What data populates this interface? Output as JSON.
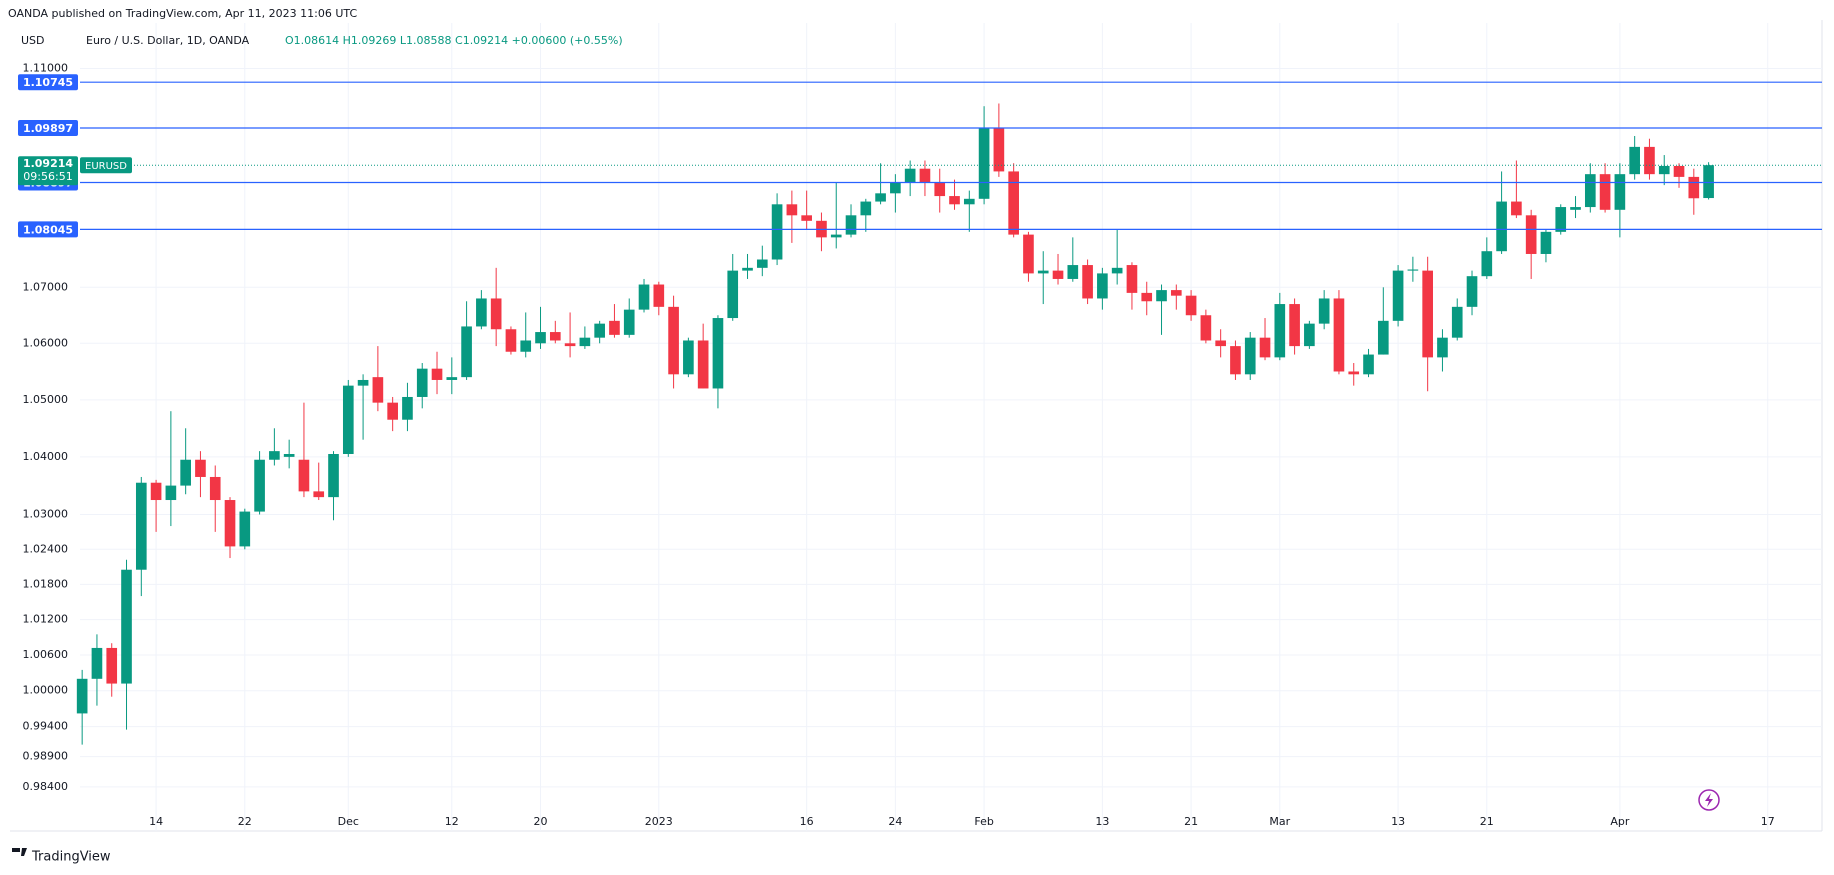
{
  "chart_data": {
    "type": "candlestick",
    "header": "OANDA published on TradingView.com, Apr 11, 2023 11:06 UTC",
    "currency": "USD",
    "legend_title": "Euro / U.S. Dollar, 1D, OANDA",
    "legend_values": "O1.08614 H1.09269 L1.08588 C1.09214 +0.00600 (+0.55%)",
    "footer": "TradingView",
    "log_scale": true,
    "grid": true,
    "up_color": "#089981",
    "down_color": "#f23645",
    "line_color": "#2962ff",
    "open": [
      0.9962,
      1.002,
      1.0072,
      1.0012,
      1.0205,
      1.0355,
      1.0325,
      1.035,
      1.0395,
      1.0365,
      1.0325,
      1.0245,
      1.0305,
      1.0395,
      1.04,
      1.0395,
      1.034,
      1.033,
      1.0405,
      1.0525,
      1.054,
      1.0495,
      1.0465,
      1.0505,
      1.0555,
      1.0535,
      1.054,
      1.063,
      1.068,
      1.0625,
      1.0585,
      1.06,
      1.062,
      1.06,
      1.0595,
      1.061,
      1.064,
      1.0615,
      1.066,
      1.0705,
      1.0665,
      1.0545,
      1.0605,
      1.052,
      1.0645,
      1.073,
      1.0735,
      1.075,
      1.085,
      1.083,
      1.082,
      1.079,
      1.0795,
      1.083,
      1.0855,
      1.087,
      1.089,
      1.0915,
      1.089,
      1.0865,
      1.085,
      1.086,
      1.099,
      1.091,
      1.0795,
      1.0725,
      1.073,
      1.0715,
      1.074,
      1.068,
      1.0725,
      1.074,
      1.069,
      1.0675,
      1.0695,
      1.0685,
      1.065,
      1.0605,
      1.0595,
      1.0545,
      1.061,
      1.0575,
      1.067,
      1.0595,
      1.0635,
      1.068,
      1.055,
      1.0545,
      1.058,
      1.064,
      1.073,
      1.073,
      1.0575,
      1.061,
      1.0665,
      1.072,
      1.0765,
      1.0855,
      1.083,
      1.076,
      1.08,
      1.084,
      1.0845,
      1.0905,
      1.084,
      1.0905,
      1.0955,
      1.0905,
      1.092,
      1.09,
      1.08614
    ],
    "high": [
      1.0035,
      1.0095,
      1.008,
      1.0222,
      1.0365,
      1.036,
      1.048,
      1.045,
      1.041,
      1.0385,
      1.033,
      1.031,
      1.041,
      1.045,
      1.043,
      1.0495,
      1.039,
      1.041,
      1.0535,
      1.0545,
      1.0595,
      1.0505,
      1.053,
      1.0565,
      1.0585,
      1.0575,
      1.0675,
      1.0695,
      1.0735,
      1.063,
      1.0655,
      1.0665,
      1.064,
      1.0655,
      1.063,
      1.064,
      1.067,
      1.068,
      1.0715,
      1.071,
      1.0685,
      1.061,
      1.0635,
      1.065,
      1.076,
      1.076,
      1.0775,
      1.087,
      1.0875,
      1.0875,
      1.0835,
      1.089,
      1.085,
      1.086,
      1.0925,
      1.0905,
      1.093,
      1.093,
      1.0915,
      1.0895,
      1.0875,
      1.103,
      1.1035,
      1.0925,
      1.08,
      1.0765,
      1.076,
      1.079,
      1.075,
      1.0735,
      1.0805,
      1.0745,
      1.071,
      1.0705,
      1.0705,
      1.0695,
      1.066,
      1.0625,
      1.0605,
      1.062,
      1.0645,
      1.069,
      1.068,
      1.064,
      1.0695,
      1.0695,
      1.0565,
      1.059,
      1.07,
      1.074,
      1.0755,
      1.0755,
      1.0625,
      1.068,
      1.073,
      1.079,
      1.091,
      1.093,
      1.084,
      1.0805,
      1.085,
      1.0865,
      1.0925,
      1.0925,
      1.0925,
      1.0975,
      1.097,
      1.094,
      1.0925,
      1.0915,
      1.09269
    ],
    "low": [
      0.991,
      0.9975,
      0.999,
      0.9935,
      1.016,
      1.027,
      1.028,
      1.0335,
      1.033,
      1.027,
      1.0225,
      1.024,
      1.03,
      1.0385,
      1.038,
      1.033,
      1.0325,
      1.029,
      1.04,
      1.043,
      1.048,
      1.0445,
      1.0445,
      1.0485,
      1.051,
      1.051,
      1.0535,
      1.0625,
      1.0595,
      1.058,
      1.0575,
      1.059,
      1.06,
      1.0575,
      1.059,
      1.06,
      1.061,
      1.061,
      1.0655,
      1.065,
      1.052,
      1.054,
      1.052,
      1.0485,
      1.064,
      1.0715,
      1.072,
      1.074,
      1.078,
      1.0805,
      1.0765,
      1.077,
      1.079,
      1.08,
      1.085,
      1.0835,
      1.0865,
      1.0865,
      1.0835,
      1.084,
      1.08,
      1.085,
      1.09,
      1.079,
      1.071,
      1.067,
      1.0705,
      1.071,
      1.067,
      1.066,
      1.0705,
      1.066,
      1.065,
      1.0615,
      1.066,
      1.064,
      1.06,
      1.0575,
      1.0535,
      1.0535,
      1.057,
      1.057,
      1.058,
      1.059,
      1.0625,
      1.0545,
      1.0525,
      1.054,
      1.058,
      1.063,
      1.071,
      1.0515,
      1.055,
      1.0605,
      1.065,
      1.0715,
      1.076,
      1.0825,
      1.0715,
      1.0745,
      1.0795,
      1.0825,
      1.0835,
      1.0835,
      1.079,
      1.0895,
      1.0895,
      1.0885,
      1.088,
      1.0831,
      1.08588
    ],
    "close": [
      1.002,
      1.0072,
      1.0012,
      1.0205,
      1.0355,
      1.0325,
      1.035,
      1.0395,
      1.0365,
      1.0325,
      1.0245,
      1.0305,
      1.0395,
      1.041,
      1.0405,
      1.034,
      1.033,
      1.0405,
      1.0525,
      1.0535,
      1.0495,
      1.0465,
      1.0505,
      1.0555,
      1.0535,
      1.054,
      1.063,
      1.068,
      1.0625,
      1.0585,
      1.0605,
      1.062,
      1.0605,
      1.0595,
      1.061,
      1.0635,
      1.0615,
      1.066,
      1.0705,
      1.0665,
      1.0545,
      1.0605,
      1.052,
      1.0645,
      1.073,
      1.0735,
      1.075,
      1.085,
      1.083,
      1.082,
      1.079,
      1.0795,
      1.083,
      1.0855,
      1.087,
      1.089,
      1.0915,
      1.089,
      1.0865,
      1.085,
      1.086,
      1.099,
      1.091,
      1.0795,
      1.0725,
      1.073,
      1.0715,
      1.074,
      1.068,
      1.0725,
      1.0735,
      1.069,
      1.0675,
      1.0695,
      1.0685,
      1.065,
      1.0605,
      1.0595,
      1.0545,
      1.061,
      1.0575,
      1.067,
      1.0595,
      1.0635,
      1.068,
      1.055,
      1.0545,
      1.058,
      1.064,
      1.073,
      1.0732,
      1.0575,
      1.061,
      1.0665,
      1.072,
      1.0765,
      1.0855,
      1.083,
      1.076,
      1.08,
      1.0845,
      1.0845,
      1.0905,
      1.084,
      1.0905,
      1.0955,
      1.0905,
      1.092,
      1.09,
      1.0861,
      1.09214
    ],
    "xlim": [
      -4.745,
      117.67
    ],
    "xticks": [
      {
        "value": 5,
        "label": "14"
      },
      {
        "value": 11,
        "label": "22"
      },
      {
        "value": 18,
        "label": "Dec"
      },
      {
        "value": 25,
        "label": "12"
      },
      {
        "value": 31,
        "label": "20"
      },
      {
        "value": 39,
        "label": "2023"
      },
      {
        "value": 49,
        "label": "16"
      },
      {
        "value": 55,
        "label": "24"
      },
      {
        "value": 61,
        "label": "Feb"
      },
      {
        "value": 69,
        "label": "13"
      },
      {
        "value": 75,
        "label": "21"
      },
      {
        "value": 81,
        "label": "Mar"
      },
      {
        "value": 89,
        "label": "13"
      },
      {
        "value": 95,
        "label": "21"
      },
      {
        "value": 104,
        "label": "Apr"
      },
      {
        "value": 114,
        "label": "17"
      }
    ],
    "ylim": [
      0.9797,
      1.1185
    ],
    "yticks": [
      {
        "value": 0.984,
        "label": "0.98400"
      },
      {
        "value": 0.989,
        "label": "0.98900"
      },
      {
        "value": 0.994,
        "label": "0.99400"
      },
      {
        "value": 1.0,
        "label": "1.00000"
      },
      {
        "value": 1.006,
        "label": "1.00600"
      },
      {
        "value": 1.012,
        "label": "1.01200"
      },
      {
        "value": 1.018,
        "label": "1.01800"
      },
      {
        "value": 1.024,
        "label": "1.02400"
      },
      {
        "value": 1.03,
        "label": "1.03000"
      },
      {
        "value": 1.04,
        "label": "1.04000"
      },
      {
        "value": 1.05,
        "label": "1.05000"
      },
      {
        "value": 1.06,
        "label": "1.06000"
      },
      {
        "value": 1.07,
        "label": "1.07000"
      },
      {
        "value": 1.11,
        "label": "1.11000"
      }
    ],
    "hlines": [
      1.10745,
      1.09897,
      1.08897,
      1.08045
    ],
    "last_price": 1.09214,
    "countdown": "09:56:51",
    "symbol": "EURUSD"
  }
}
